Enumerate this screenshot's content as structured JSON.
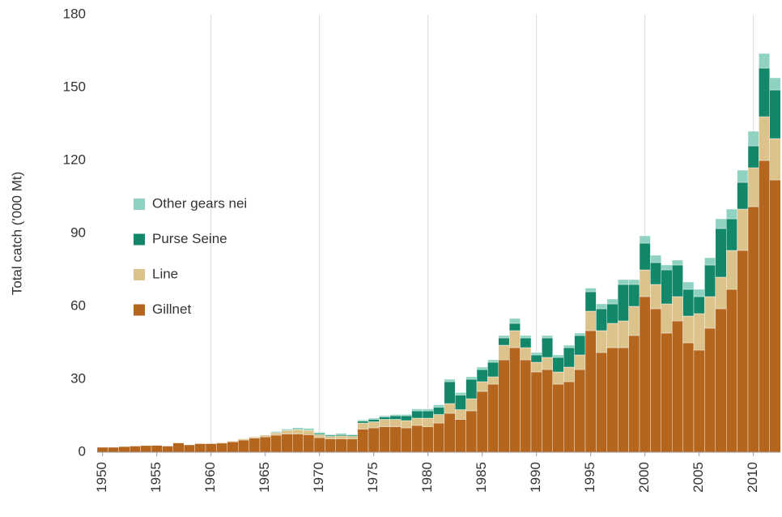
{
  "chart_data": {
    "type": "stacked_bar",
    "y_label": "Total catch ('000 Mt)",
    "categories": [
      "1950",
      null,
      null,
      null,
      null,
      "1955",
      null,
      null,
      null,
      null,
      "1960",
      null,
      null,
      null,
      null,
      "1965",
      null,
      null,
      null,
      null,
      "1970",
      null,
      null,
      null,
      null,
      "1975",
      null,
      null,
      null,
      null,
      "1980",
      null,
      null,
      null,
      null,
      "1985",
      null,
      null,
      null,
      null,
      "1990",
      null,
      null,
      null,
      null,
      "1995",
      null,
      null,
      null,
      null,
      "2000",
      null,
      null,
      null,
      null,
      "2005",
      null,
      null,
      null,
      null,
      "2010",
      null,
      null
    ],
    "series": [
      {
        "name": "Gillnet",
        "color": "#b4661f",
        "values": [
          2,
          2,
          2.3,
          2.5,
          2.7,
          2.8,
          2.5,
          3.8,
          3,
          3.5,
          3.5,
          3.7,
          4.3,
          5,
          5.8,
          6.3,
          7,
          7.5,
          7.5,
          7.2,
          6,
          5.5,
          5.5,
          5.5,
          9.5,
          10,
          10.5,
          10.5,
          10,
          11,
          10.5,
          12,
          16,
          13.5,
          17,
          25,
          28,
          38,
          43,
          38,
          33,
          34,
          28,
          29,
          34,
          50,
          41,
          43,
          43,
          48,
          64,
          59,
          49,
          54,
          45,
          42,
          51,
          59,
          67,
          83,
          101,
          120,
          112
        ]
      },
      {
        "name": "Line",
        "color": "#dcc38c",
        "values": [
          0,
          0,
          0,
          0,
          0,
          0,
          0,
          0,
          0,
          0,
          0,
          0.3,
          0.3,
          0.5,
          0.5,
          0.7,
          1,
          1.5,
          1.8,
          1.8,
          1.2,
          1,
          1.2,
          1,
          2.5,
          2.5,
          3,
          3,
          3,
          3,
          3.5,
          3.5,
          4,
          4,
          5,
          4,
          3,
          6,
          7,
          5,
          4,
          5,
          5,
          6,
          6,
          8,
          9,
          10,
          11,
          12,
          11,
          10,
          12,
          10,
          11,
          15,
          13,
          13,
          16,
          17,
          16,
          18,
          17
        ]
      },
      {
        "name": "Purse Seine",
        "color": "#13876a",
        "values": [
          0,
          0,
          0,
          0,
          0,
          0,
          0,
          0,
          0,
          0,
          0,
          0,
          0,
          0,
          0,
          0,
          0,
          0,
          0,
          0,
          0.5,
          0.5,
          0.5,
          0.5,
          0.8,
          1,
          1,
          1.5,
          2,
          3,
          3,
          3,
          9,
          6,
          8,
          5,
          6,
          3,
          3,
          4,
          3,
          8,
          6,
          8,
          8,
          8,
          9,
          8,
          15,
          9,
          11,
          9,
          14,
          13,
          11,
          7,
          13,
          20,
          13,
          11,
          9,
          20,
          20
        ]
      },
      {
        "name": "Other gears nei",
        "color": "#8fd2c2",
        "values": [
          0,
          0,
          0,
          0,
          0,
          0,
          0,
          0,
          0,
          0,
          0,
          0,
          0,
          0,
          0,
          0,
          0.5,
          0.5,
          0.8,
          0.8,
          0.5,
          0.3,
          0.5,
          0.3,
          0.5,
          0.5,
          0.5,
          0.5,
          0.5,
          0.8,
          0.8,
          1,
          1,
          1,
          1,
          1,
          1,
          1,
          2,
          1,
          1,
          1,
          1,
          1,
          1,
          1.5,
          2,
          2,
          2,
          2,
          3,
          3,
          2,
          2,
          3,
          3,
          3,
          4,
          4,
          5,
          6,
          6,
          5
        ]
      }
    ],
    "ylim": [
      0,
      180
    ],
    "yticks": [
      0,
      30,
      60,
      90,
      120,
      150,
      180
    ],
    "grid": true
  }
}
